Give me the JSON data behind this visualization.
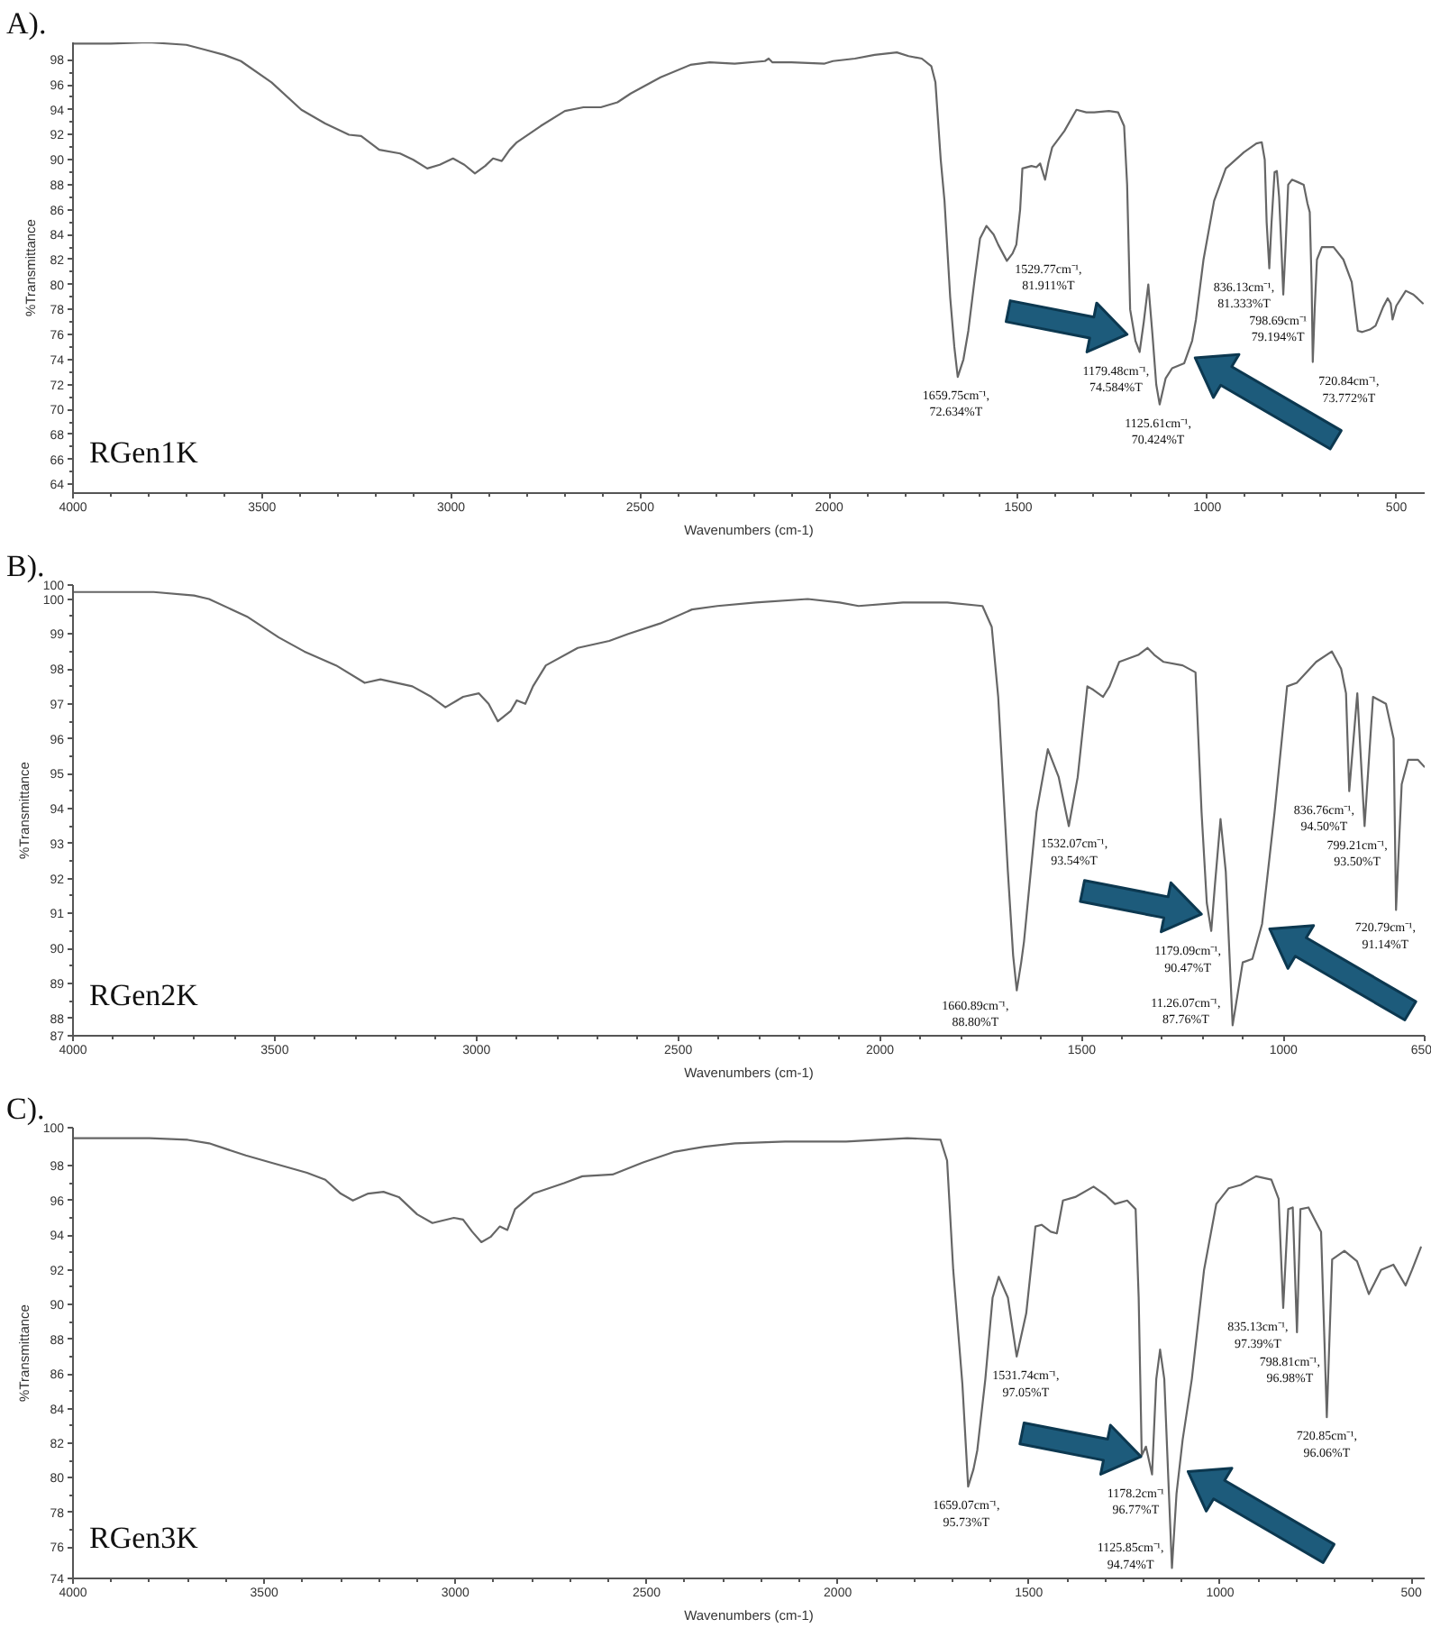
{
  "chart_data": [
    {
      "type": "line",
      "title": "A).",
      "xlabel": "Wavenumbers (cm-1)",
      "ylabel": "%Transmittance",
      "xlim": [
        4000,
        425
      ],
      "xticks": [
        4000,
        3500,
        3000,
        2500,
        2000,
        1500,
        1000,
        500
      ],
      "ylim": [
        63.3,
        99.4
      ],
      "yticks": [
        64,
        66,
        68,
        70,
        72,
        74,
        76,
        78,
        80,
        82,
        84,
        86,
        88,
        90,
        92,
        94,
        96,
        98
      ],
      "grid": false,
      "x": [
        4000,
        3900,
        3800,
        3700,
        3650,
        3600,
        3556,
        3475,
        3396,
        3333,
        3270,
        3238,
        3190,
        3135,
        3100,
        3063,
        3030,
        2995,
        2965,
        2937,
        2910,
        2889,
        2866,
        2845,
        2826,
        2763,
        2699,
        2650,
        2604,
        2560,
        2525,
        2446,
        2367,
        2316,
        2250,
        2170,
        2160,
        2150,
        2100,
        2012,
        1990,
        1932,
        1880,
        1821,
        1790,
        1755,
        1730,
        1719,
        1705,
        1695,
        1680,
        1669,
        1660,
        1645,
        1632,
        1615,
        1601,
        1584,
        1565,
        1553,
        1530,
        1515,
        1505,
        1495,
        1489,
        1465,
        1452,
        1442,
        1429,
        1420,
        1410,
        1378,
        1346,
        1320,
        1299,
        1260,
        1236,
        1220,
        1212,
        1204,
        1190,
        1179,
        1168,
        1156,
        1145,
        1135,
        1126,
        1110,
        1093,
        1061,
        1040,
        1030,
        1010,
        982,
        951,
        903,
        870,
        856,
        848,
        843,
        836,
        830,
        822,
        816,
        810,
        804,
        799,
        793,
        786,
        776,
        760,
        745,
        735,
        729,
        724,
        721,
        716,
        710,
        697,
        666,
        640,
        618,
        602,
        590,
        570,
        555,
        535,
        523,
        515,
        510,
        500,
        475,
        455,
        444,
        430
      ],
      "series": [
        {
          "color": "#666666",
          "values": [
            99.3,
            99.3,
            99.4,
            99.2,
            98.8,
            98.4,
            97.9,
            96.2,
            94.0,
            92.9,
            92.0,
            91.9,
            90.8,
            90.5,
            90.0,
            89.3,
            89.6,
            90.1,
            89.6,
            88.9,
            89.5,
            90.1,
            89.9,
            90.8,
            91.4,
            92.7,
            93.9,
            94.2,
            94.2,
            94.6,
            95.3,
            96.6,
            97.6,
            97.8,
            97.7,
            97.9,
            98.1,
            97.8,
            97.8,
            97.7,
            97.9,
            98.1,
            98.4,
            98.6,
            98.3,
            98.1,
            97.5,
            96.2,
            90.0,
            86.7,
            79.0,
            75.0,
            72.6,
            74.0,
            76.3,
            80.5,
            83.7,
            84.7,
            84.0,
            83.2,
            81.9,
            82.5,
            83.2,
            86.0,
            89.3,
            89.5,
            89.4,
            89.7,
            88.4,
            89.8,
            91.0,
            92.3,
            94.0,
            93.8,
            93.8,
            93.9,
            93.8,
            92.7,
            88.0,
            78.0,
            75.5,
            74.6,
            77.0,
            80.0,
            76.0,
            72.0,
            70.4,
            72.5,
            73.3,
            73.7,
            75.5,
            77.2,
            82.0,
            86.7,
            89.3,
            90.6,
            91.3,
            91.4,
            90.0,
            85.0,
            81.3,
            85.0,
            89.0,
            89.1,
            87.0,
            83.0,
            79.2,
            83.0,
            88.0,
            88.4,
            88.2,
            88.0,
            86.5,
            85.8,
            80.0,
            73.8,
            78.0,
            82.0,
            83.0,
            83.0,
            82.0,
            80.2,
            76.3,
            76.2,
            76.4,
            76.7,
            78.2,
            78.9,
            78.5,
            77.2,
            78.3,
            79.5,
            79.2,
            78.9,
            78.5
          ]
        }
      ],
      "annotations": [
        "RGen1K",
        {
          "text": "1659.75cm⁻¹,\n72.634%T",
          "x": 1659.75,
          "y": 72.634
        },
        {
          "text": "1529.77cm⁻¹,\n81.911%T",
          "x": 1529.77,
          "y": 81.911
        },
        {
          "text": "1179.48cm⁻¹,\n74.584%T",
          "x": 1179.48,
          "y": 74.584
        },
        {
          "text": "1125.61cm⁻¹,\n70.424%T",
          "x": 1125.61,
          "y": 70.424
        },
        {
          "text": "836.13cm⁻¹,\n81.333%T",
          "x": 836.13,
          "y": 81.333
        },
        {
          "text": "798.69cm⁻¹\n79.194%T",
          "x": 798.69,
          "y": 79.194
        },
        {
          "text": "720.84cm⁻¹,\n73.772%T",
          "x": 720.84,
          "y": 73.772
        }
      ]
    },
    {
      "type": "line",
      "title": "B).",
      "xlabel": "Wavenumbers (cm-1)",
      "ylabel": "%Transmittance",
      "xlim": [
        4000,
        650
      ],
      "xticks": [
        4000,
        3500,
        3000,
        2500,
        2000,
        1500,
        1000,
        650
      ],
      "ylim": [
        87.5,
        100.4
      ],
      "yticks": [
        {
          "value": 87.5,
          "label": "87"
        },
        88,
        89,
        90,
        91,
        92,
        93,
        94,
        95,
        96,
        97,
        98,
        99,
        100,
        {
          "value": 100.4,
          "label": "100"
        }
      ],
      "grid": false,
      "x": [
        4000,
        3900,
        3800,
        3700,
        3663,
        3569,
        3490,
        3427,
        3348,
        3277,
        3238,
        3159,
        3112,
        3077,
        3033,
        2994,
        2970,
        2947,
        2915,
        2900,
        2879,
        2860,
        2828,
        2749,
        2671,
        2624,
        2545,
        2466,
        2403,
        2308,
        2179,
        2100,
        2053,
        1943,
        1833,
        1746,
        1723,
        1707,
        1683,
        1670,
        1661,
        1650,
        1643,
        1612,
        1584,
        1557,
        1532,
        1510,
        1486,
        1471,
        1447,
        1431,
        1407,
        1360,
        1337,
        1320,
        1297,
        1250,
        1218,
        1203,
        1190,
        1179,
        1170,
        1156,
        1143,
        1126,
        1101,
        1077,
        1053,
        1022,
        991,
        967,
        919,
        880,
        857,
        845,
        837,
        817,
        799,
        778,
        746,
        727,
        721,
        707,
        691,
        667,
        651
      ],
      "series": [
        {
          "color": "#666666",
          "values": [
            100.2,
            100.2,
            100.2,
            100.1,
            100.0,
            99.5,
            98.9,
            98.5,
            98.1,
            97.6,
            97.7,
            97.5,
            97.2,
            96.9,
            97.2,
            97.3,
            97.0,
            96.5,
            96.8,
            97.1,
            97.0,
            97.5,
            98.1,
            98.6,
            98.8,
            99.0,
            99.3,
            99.7,
            99.8,
            99.9,
            100.0,
            99.9,
            99.8,
            99.9,
            99.9,
            99.8,
            99.2,
            97.2,
            92.2,
            89.8,
            88.8,
            89.6,
            90.2,
            93.9,
            95.7,
            94.9,
            93.5,
            94.9,
            97.5,
            97.4,
            97.2,
            97.5,
            98.2,
            98.4,
            98.6,
            98.4,
            98.2,
            98.1,
            97.9,
            93.9,
            91.3,
            90.5,
            91.8,
            93.7,
            92.2,
            87.8,
            89.6,
            89.7,
            90.7,
            93.9,
            97.5,
            97.6,
            98.2,
            98.5,
            98.0,
            97.3,
            94.5,
            97.3,
            93.5,
            97.2,
            97.0,
            96.0,
            91.1,
            94.7,
            95.4,
            95.4,
            95.2
          ]
        }
      ],
      "annotations": [
        "RGen2K",
        {
          "text": "1660.89cm⁻¹,\n88.80%T",
          "x": 1660.89,
          "y": 88.8
        },
        {
          "text": "1532.07cm⁻¹,\n93.54%T",
          "x": 1532.07,
          "y": 93.54
        },
        {
          "text": "1179.09cm⁻¹,\n90.47%T",
          "x": 1179.09,
          "y": 90.47
        },
        {
          "text": "11.26.07cm⁻¹,\n87.76%T",
          "x": 1126.07,
          "y": 87.76
        },
        {
          "text": "836.76cm⁻¹,\n94.50%T",
          "x": 836.76,
          "y": 94.5
        },
        {
          "text": "799.21cm⁻¹,\n93.50%T",
          "x": 799.21,
          "y": 93.5
        },
        {
          "text": "720.79cm⁻¹,\n91.14%T",
          "x": 720.79,
          "y": 91.14
        }
      ]
    },
    {
      "type": "line",
      "title": "C).",
      "xlabel": "Wavenumbers (cm-1)",
      "ylabel": "%Transmittance",
      "xlim": [
        4000,
        465
      ],
      "xticks": [
        4000,
        3500,
        3000,
        2500,
        2000,
        1500,
        1000,
        500
      ],
      "ylim": [
        74.2,
        100.2
      ],
      "yticks": [
        {
          "value": 74.2,
          "label": "74"
        },
        76,
        78,
        80,
        82,
        84,
        86,
        88,
        90,
        92,
        94,
        96,
        98,
        {
          "value": 100.2,
          "label": "100"
        }
      ],
      "grid": false,
      "x": [
        4000,
        3900,
        3800,
        3700,
        3644,
        3548,
        3484,
        3388,
        3340,
        3300,
        3268,
        3228,
        3188,
        3148,
        3100,
        3060,
        3004,
        2980,
        2956,
        2932,
        2908,
        2884,
        2864,
        2844,
        2796,
        2716,
        2668,
        2589,
        2509,
        2429,
        2349,
        2269,
        2138,
        1978,
        1818,
        1731,
        1714,
        1698,
        1674,
        1659,
        1645,
        1635,
        1614,
        1595,
        1579,
        1555,
        1532,
        1507,
        1483,
        1467,
        1443,
        1427,
        1411,
        1379,
        1331,
        1299,
        1275,
        1243,
        1221,
        1213,
        1205,
        1194,
        1178,
        1167,
        1157,
        1146,
        1126,
        1114,
        1098,
        1074,
        1042,
        1010,
        978,
        946,
        906,
        866,
        847,
        835,
        822,
        810,
        799,
        790,
        769,
        736,
        721,
        707,
        675,
        642,
        611,
        579,
        547,
        515,
        498,
        475
      ],
      "series": [
        {
          "color": "#666666",
          "values": [
            99.6,
            99.6,
            99.6,
            99.5,
            99.3,
            98.6,
            98.2,
            97.6,
            97.2,
            96.4,
            96.0,
            96.4,
            96.5,
            96.2,
            95.2,
            94.7,
            95.0,
            94.9,
            94.2,
            93.6,
            93.9,
            94.5,
            94.3,
            95.5,
            96.4,
            97.0,
            97.4,
            97.5,
            98.2,
            98.8,
            99.1,
            99.3,
            99.4,
            99.4,
            99.6,
            99.5,
            98.3,
            92.0,
            85.4,
            79.5,
            80.5,
            81.6,
            85.7,
            90.4,
            91.6,
            90.4,
            87.0,
            89.5,
            94.5,
            94.6,
            94.2,
            94.1,
            96.0,
            96.2,
            96.8,
            96.3,
            95.8,
            96.0,
            95.5,
            90.4,
            81.3,
            81.8,
            80.2,
            85.7,
            87.4,
            85.7,
            74.8,
            79.1,
            82.2,
            85.7,
            92.0,
            95.8,
            96.7,
            96.9,
            97.4,
            97.2,
            96.1,
            89.8,
            95.5,
            95.6,
            88.4,
            95.5,
            95.6,
            94.2,
            83.5,
            92.6,
            93.1,
            92.5,
            90.6,
            92.0,
            92.3,
            91.1,
            92.0,
            93.3
          ]
        }
      ],
      "annotations": [
        "RGen3K",
        {
          "text": "1659.07cm⁻¹,\n95.73%T",
          "x": 1659.07,
          "y": 79.5
        },
        {
          "text": "1531.74cm⁻¹,\n97.05%T",
          "x": 1531.74,
          "y": 87.0
        },
        {
          "text": "1178.2cm⁻¹\n96.77%T",
          "x": 1178.2,
          "y": 80.2
        },
        {
          "text": "1125.85cm⁻¹,\n94.74%T",
          "x": 1125.85,
          "y": 74.8
        },
        {
          "text": "835.13cm⁻¹,\n97.39%T",
          "x": 835.13,
          "y": 89.8
        },
        {
          "text": "798.81cm⁻¹,\n96.98%T",
          "x": 798.81,
          "y": 88.4
        },
        {
          "text": "720.85cm⁻¹,\n96.06%T",
          "x": 720.85,
          "y": 83.5
        }
      ]
    }
  ]
}
